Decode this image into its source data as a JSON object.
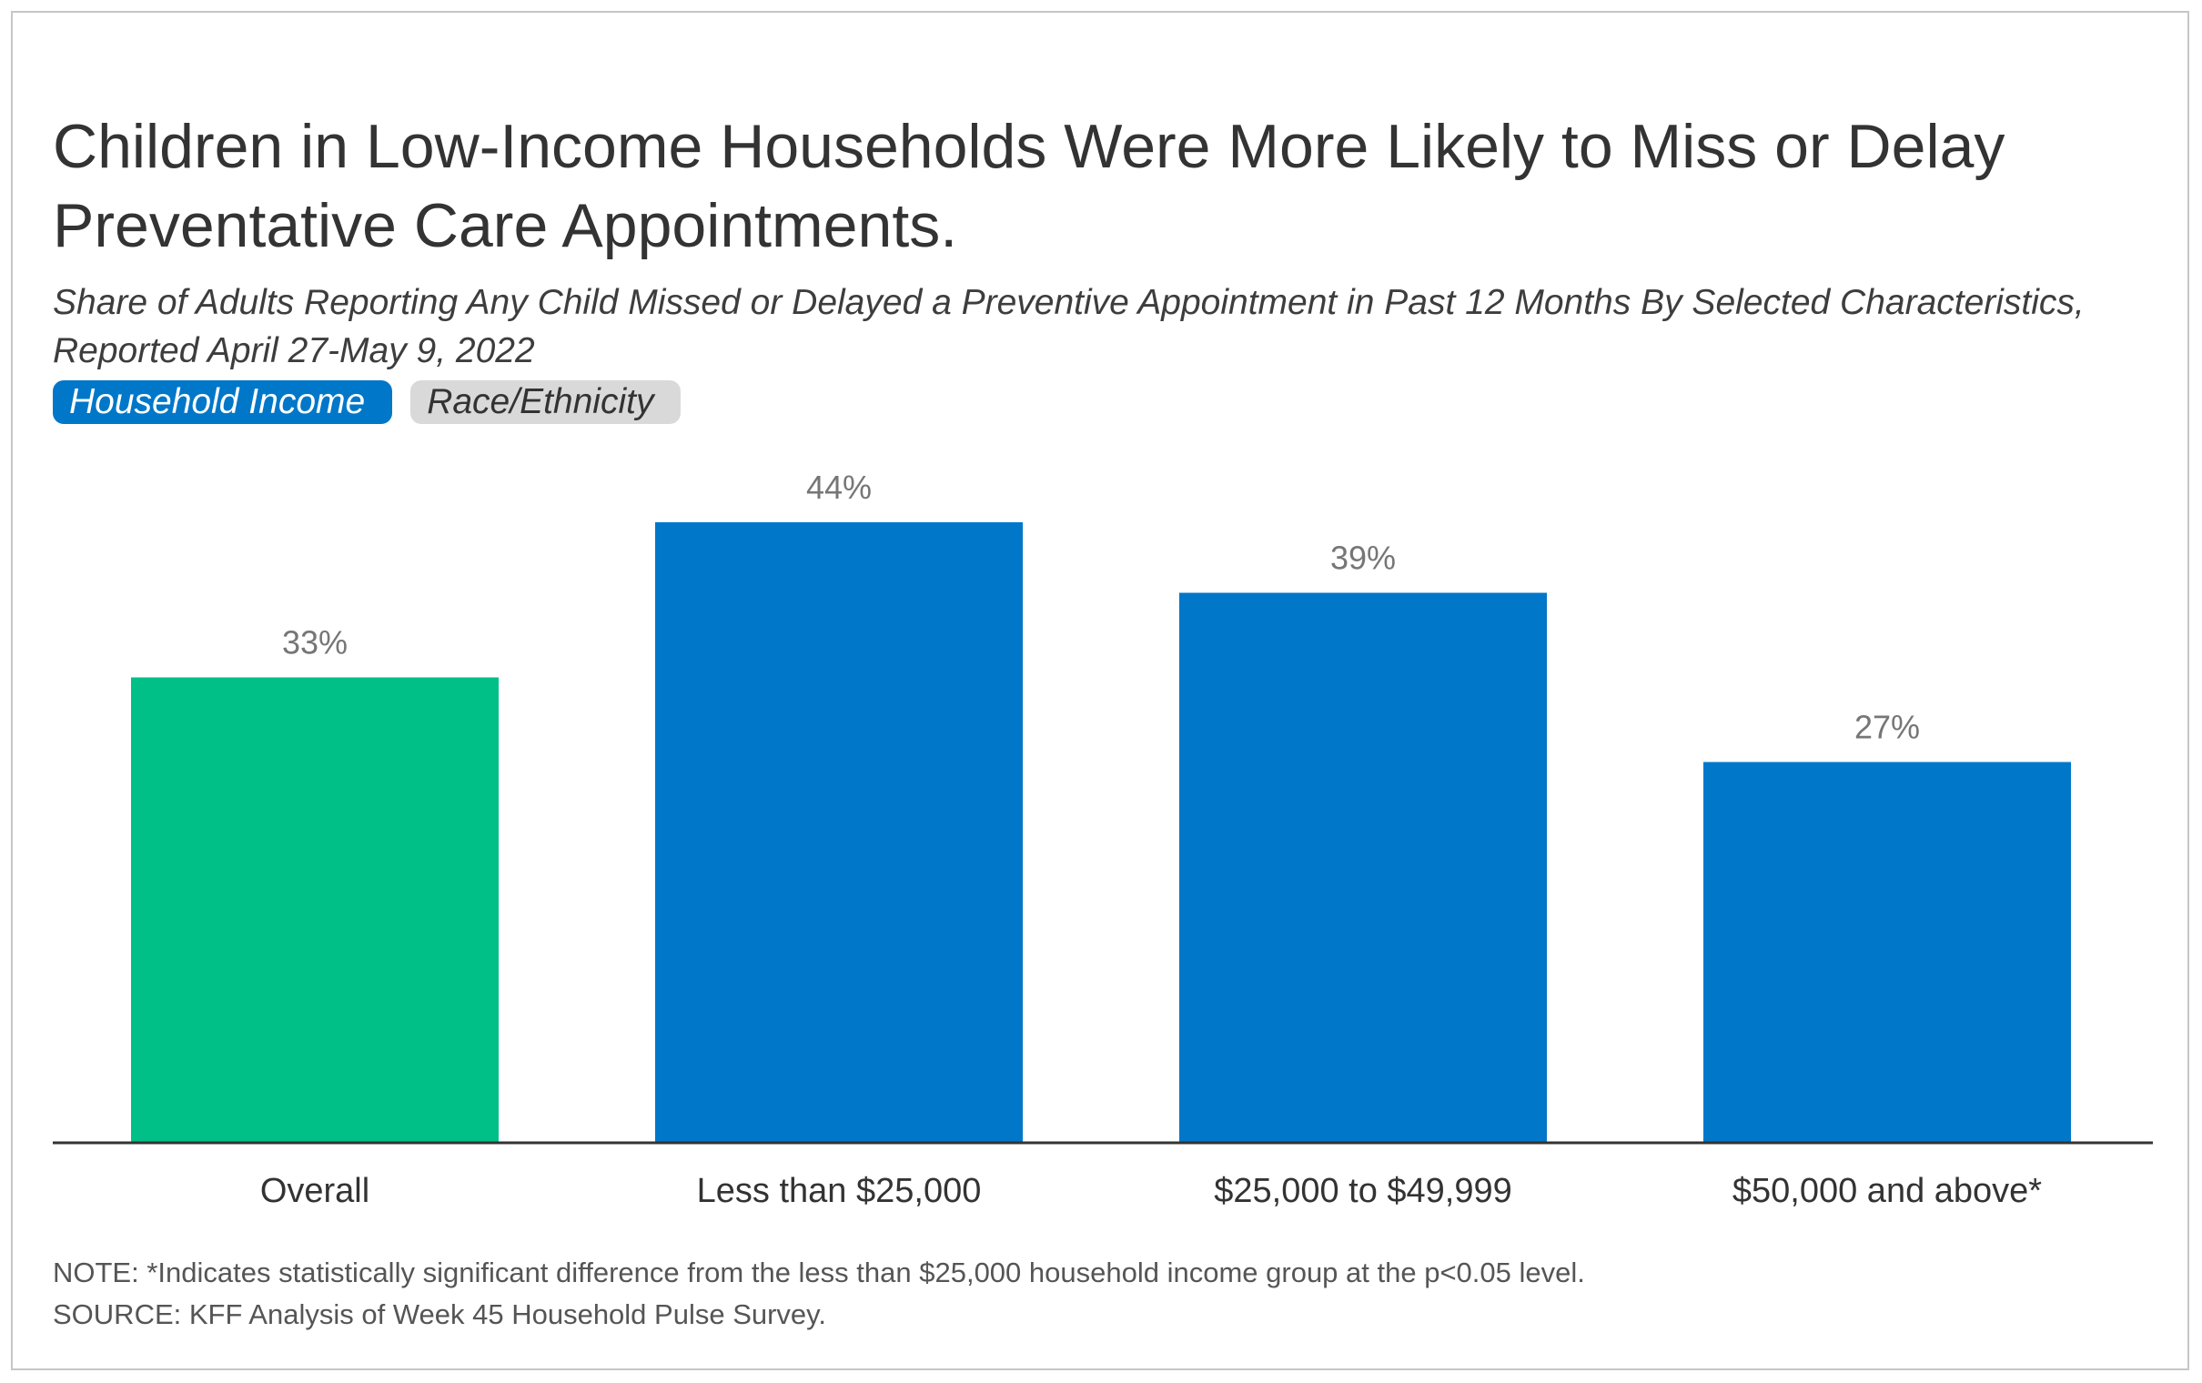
{
  "chart_data": {
    "type": "bar",
    "title": "Children in Low-Income Households Were More Likely to Miss or Delay Preventative Care Appointments.",
    "subtitle": "Share of Adults Reporting Any Child Missed or Delayed a Preventive Appointment in Past 12 Months By Selected Characteristics, Reported April 27-May 9, 2022",
    "categories": [
      "Overall",
      "Less than $25,000",
      "$25,000 to $49,999",
      "$50,000 and above*"
    ],
    "values": [
      33,
      44,
      39,
      27
    ],
    "value_labels": [
      "33%",
      "44%",
      "39%",
      "27%"
    ],
    "bar_colors": [
      "#00bf87",
      "#0077c8",
      "#0077c8",
      "#0077c8"
    ],
    "ylim": [
      0,
      44
    ],
    "xlabel": "",
    "ylabel": "",
    "grid": false
  },
  "tabs": [
    {
      "label": "Household Income",
      "active": true
    },
    {
      "label": "Race/Ethnicity",
      "active": false
    }
  ],
  "notes": {
    "note": "NOTE: *Indicates statistically significant difference from the less than $25,000 household income group at the p<0.05 level.",
    "source": "SOURCE: KFF Analysis of Week 45 Household Pulse Survey."
  },
  "colors": {
    "accent": "#0077c8",
    "overall": "#00bf87",
    "tab_inactive": "#d9d9d9"
  }
}
